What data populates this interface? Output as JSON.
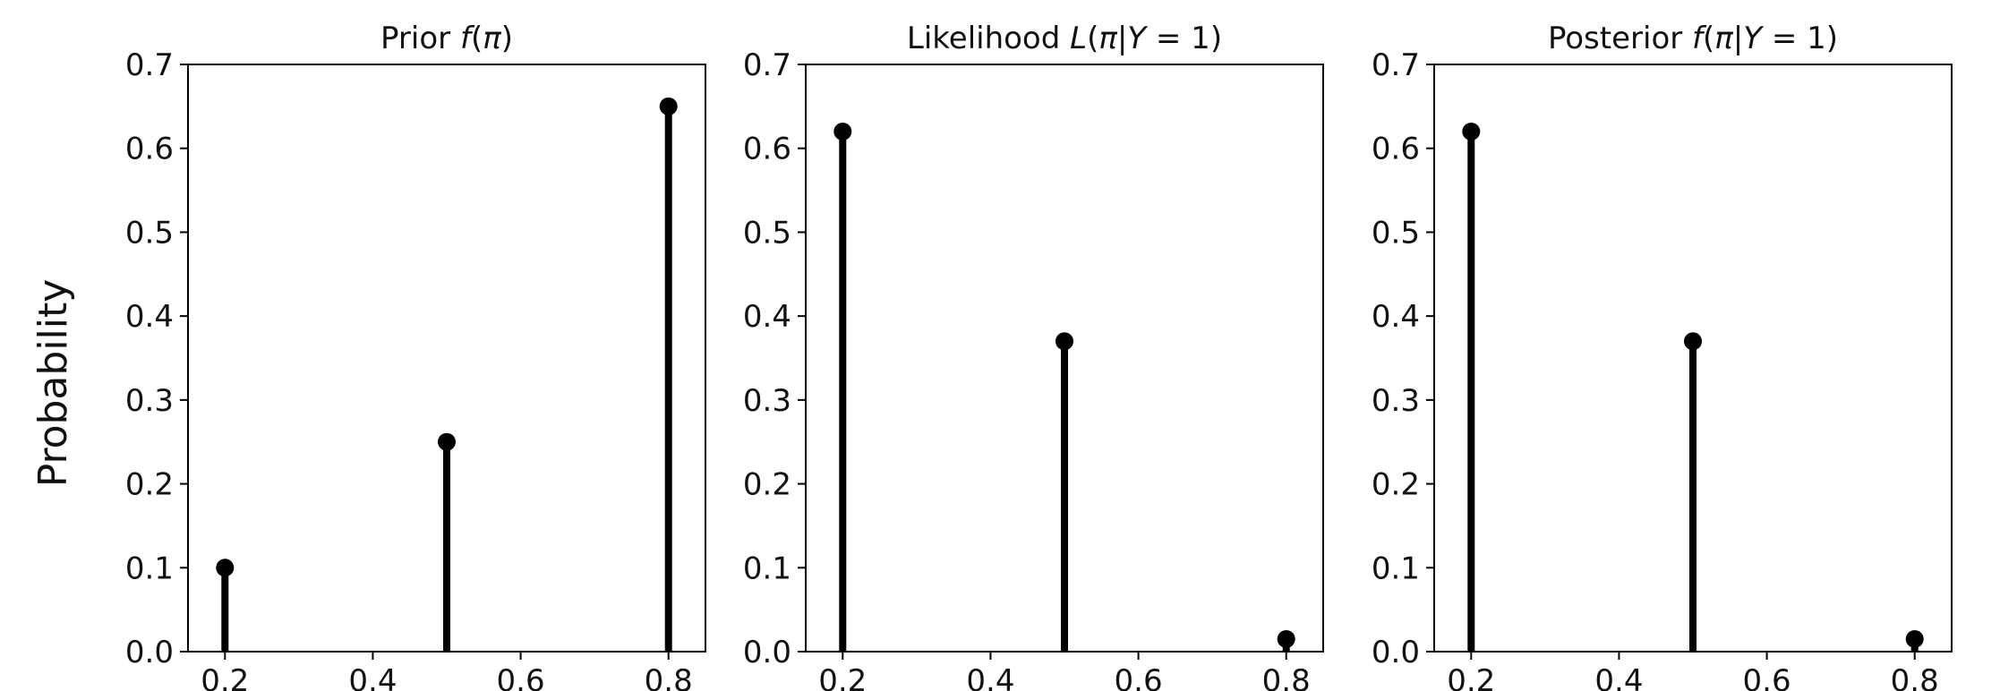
{
  "figure": {
    "ylabel": "Probability"
  },
  "chart_data": [
    {
      "type": "stem",
      "title": "Prior f(π)",
      "title_parts": [
        {
          "t": "Prior ",
          "italic": false
        },
        {
          "t": "f",
          "italic": true
        },
        {
          "t": "(",
          "italic": false
        },
        {
          "t": "π",
          "italic": true
        },
        {
          "t": ")",
          "italic": false
        }
      ],
      "x": [
        0.2,
        0.5,
        0.8
      ],
      "y": [
        0.1,
        0.25,
        0.65
      ],
      "xlim": [
        0.15,
        0.85
      ],
      "ylim": [
        0.0,
        0.7
      ],
      "xticks": [
        "0.2",
        "0.4",
        "0.6",
        "0.8"
      ],
      "yticks": [
        "0.0",
        "0.1",
        "0.2",
        "0.3",
        "0.4",
        "0.5",
        "0.6",
        "0.7"
      ],
      "color": "#000000"
    },
    {
      "type": "stem",
      "title": "Likelihood L(π|Y = 1)",
      "title_parts": [
        {
          "t": "Likelihood ",
          "italic": false
        },
        {
          "t": "L",
          "italic": true
        },
        {
          "t": "(",
          "italic": false
        },
        {
          "t": "π",
          "italic": true
        },
        {
          "t": "|",
          "italic": false
        },
        {
          "t": "Y",
          "italic": true
        },
        {
          "t": " = 1)",
          "italic": false
        }
      ],
      "x": [
        0.2,
        0.5,
        0.8
      ],
      "y": [
        0.62,
        0.37,
        0.015
      ],
      "xlim": [
        0.15,
        0.85
      ],
      "ylim": [
        0.0,
        0.7
      ],
      "xticks": [
        "0.2",
        "0.4",
        "0.6",
        "0.8"
      ],
      "yticks": [
        "0.0",
        "0.1",
        "0.2",
        "0.3",
        "0.4",
        "0.5",
        "0.6",
        "0.7"
      ],
      "color": "#000000"
    },
    {
      "type": "stem",
      "title": "Posterior f(π|Y = 1)",
      "title_parts": [
        {
          "t": "Posterior ",
          "italic": false
        },
        {
          "t": "f",
          "italic": true
        },
        {
          "t": "(",
          "italic": false
        },
        {
          "t": "π",
          "italic": true
        },
        {
          "t": "|",
          "italic": false
        },
        {
          "t": "Y",
          "italic": true
        },
        {
          "t": " = 1)",
          "italic": false
        }
      ],
      "x": [
        0.2,
        0.5,
        0.8
      ],
      "y": [
        0.62,
        0.37,
        0.015
      ],
      "xlim": [
        0.15,
        0.85
      ],
      "ylim": [
        0.0,
        0.7
      ],
      "xticks": [
        "0.2",
        "0.4",
        "0.6",
        "0.8"
      ],
      "yticks": [
        "0.0",
        "0.1",
        "0.2",
        "0.3",
        "0.4",
        "0.5",
        "0.6",
        "0.7"
      ],
      "color": "#000000"
    }
  ]
}
